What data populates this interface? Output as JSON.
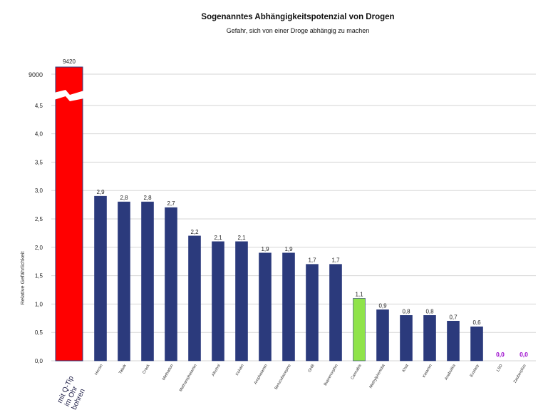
{
  "chart_data": {
    "type": "bar",
    "title": "Sogenanntes Abhängigkeitspotenzial von Drogen",
    "subtitle": "Gefahr, sich von einer Droge abhängig zu machen",
    "ylabel": "Relative Gefährlichkeit",
    "ylim": [
      0,
      4.5
    ],
    "y_break": true,
    "y_ticks": [
      "0,0",
      "0,5",
      "1,0",
      "1,5",
      "2,0",
      "2,5",
      "3,0",
      "3,5",
      "4,0",
      "4,5"
    ],
    "y_break_tick": "9000",
    "grid": true,
    "categories": [
      "mit Q-Tip im Ohr bohren",
      "Heroin",
      "Tabak",
      "Crack",
      "Methadon",
      "Methamphetamin",
      "Alkohol",
      "Kokain",
      "Amphetamin",
      "Benzodiazepine",
      "GHB",
      "Buprenorphin",
      "Cannabis",
      "Methylphenidat",
      "Khat",
      "Ketamin",
      "Anabolika",
      "Ecstasy",
      "LSD",
      "Zauberpilze"
    ],
    "values": [
      9420,
      2.9,
      2.8,
      2.8,
      2.7,
      2.2,
      2.1,
      2.1,
      1.9,
      1.9,
      1.7,
      1.7,
      1.1,
      0.9,
      0.8,
      0.8,
      0.7,
      0.6,
      0.0,
      0.0
    ],
    "value_labels": [
      "9420",
      "2,9",
      "2,8",
      "2,8",
      "2,7",
      "2,2",
      "2,1",
      "2,1",
      "1,9",
      "1,9",
      "1,7",
      "1,7",
      "1,1",
      "0,9",
      "0,8",
      "0,8",
      "0,7",
      "0,6",
      "0,0",
      "0,0"
    ],
    "colors": {
      "default": "#2b3a7c",
      "highlight_first": "#ff0000",
      "highlight_cannabis": "#8fe34a",
      "zero_label": "#9900cc",
      "grid": "#d6d6d6"
    }
  }
}
